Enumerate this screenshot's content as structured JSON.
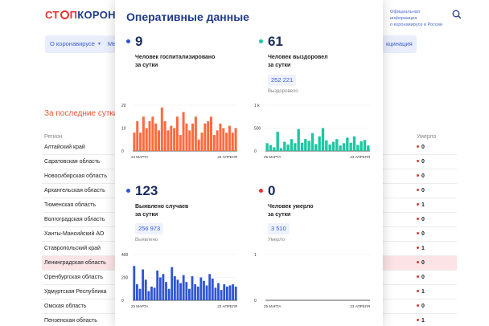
{
  "header": {
    "logo_part1": "СТ",
    "logo_part2": "П",
    "logo_part3": "КОРОНАВИ",
    "official_line1": "Официальная информация",
    "official_line2": "о коронавирусе в России"
  },
  "nav": {
    "about": "О коронавирусе",
    "partial_left": "Ме",
    "partial_right": "кцинация"
  },
  "section_title": "За последние сутки,",
  "table": {
    "col_region": "Регион",
    "col_died": "Умерло",
    "rows": [
      {
        "region": "Алтайский край",
        "died": "0"
      },
      {
        "region": "Саратовская область",
        "died": "0"
      },
      {
        "region": "Новосибирская область",
        "died": "0"
      },
      {
        "region": "Архангельская область",
        "died": "0"
      },
      {
        "region": "Тюменская область",
        "died": "1"
      },
      {
        "region": "Волгоградская область",
        "died": "0"
      },
      {
        "region": "Ханты-Мансийский АО",
        "died": "0"
      },
      {
        "region": "Ставропольский край",
        "died": "1"
      },
      {
        "region": "Ленинградская область",
        "died": "0"
      },
      {
        "region": "Оренбургская область",
        "died": "0"
      },
      {
        "region": "Удмуртская Республика",
        "died": "1"
      },
      {
        "region": "Омская область",
        "died": "0"
      },
      {
        "region": "Пензенская область",
        "died": "1"
      }
    ]
  },
  "modal": {
    "title": "Оперативные данные",
    "cards": {
      "hospitalized": {
        "number": "9",
        "label_line1": "Человек госпитализировано",
        "label_line2": "за сутки",
        "color": "#2f55d4"
      },
      "recovered": {
        "number": "61",
        "label_line1": "Человек выздоровел",
        "label_line2": "за сутки",
        "total": "252 221",
        "total_label": "Выздоровело",
        "color": "#1ec6a2"
      },
      "cases": {
        "number": "123",
        "label_line1": "Выявлено случаев",
        "label_line2": "за сутки",
        "total": "256 973",
        "total_label": "Выявлено",
        "color": "#2f55d4"
      },
      "died": {
        "number": "0",
        "label_line1": "Человек умерло",
        "label_line2": "за сутки",
        "total": "3 510",
        "total_label": "Умерло",
        "color": "#e0362f"
      }
    }
  },
  "chart_data": [
    {
      "type": "bar",
      "color": "#ff6a3d",
      "ylim": [
        0,
        20
      ],
      "yticks": [
        "20",
        "10",
        "0"
      ],
      "x_start": "24 МАРТА",
      "x_end": "23 АПРЕЛЯ",
      "values": [
        8,
        13,
        8,
        15,
        10,
        13,
        15,
        12,
        9,
        19,
        13,
        9,
        11,
        10,
        15,
        7,
        17,
        12,
        9,
        12,
        15,
        5,
        8,
        12,
        13,
        15,
        7,
        9,
        12,
        10,
        8,
        11,
        8,
        10
      ]
    },
    {
      "type": "bar",
      "color": "#1ec6a2",
      "ylim": [
        0,
        1000
      ],
      "yticks": [
        "1 k",
        "500",
        "0"
      ],
      "x_start": "25 МАРТА",
      "x_end": "23 АПРЕЛЯ",
      "values": [
        170,
        130,
        80,
        420,
        60,
        200,
        140,
        260,
        170,
        480,
        180,
        260,
        220,
        390,
        150,
        320,
        500,
        230,
        140,
        200,
        260,
        120,
        170,
        290,
        180,
        320,
        130,
        210,
        240,
        120
      ]
    },
    {
      "type": "bar",
      "color": "#2f55d4",
      "ylim": [
        0,
        400
      ],
      "yticks": [
        "400",
        "200",
        "0"
      ],
      "x_start": "25 МАРТА",
      "x_end": "23 АПРЕЛЯ",
      "values": [
        300,
        140,
        100,
        270,
        180,
        80,
        120,
        110,
        260,
        200,
        230,
        160,
        100,
        290,
        210,
        180,
        150,
        220,
        160,
        100,
        210,
        140,
        120,
        200,
        170,
        130,
        230,
        190,
        110,
        150,
        90,
        140,
        120,
        130,
        140,
        120
      ]
    },
    {
      "type": "bar",
      "color": "#e0362f",
      "ylim": [
        0,
        1
      ],
      "yticks": [
        "1",
        "0"
      ],
      "x_start": "25 МАРТА",
      "x_end": "23 АПРЕЛЯ",
      "values": []
    }
  ]
}
